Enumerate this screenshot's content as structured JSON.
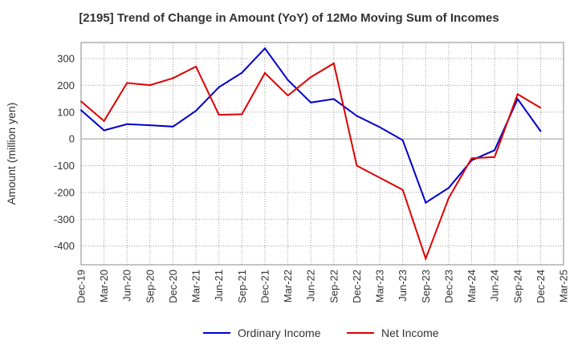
{
  "chart_data": {
    "type": "line",
    "title": "[2195]  Trend of Change in Amount (YoY) of 12Mo Moving Sum of Incomes",
    "xlabel": "",
    "ylabel": "Amount (million yen)",
    "ylim": [
      -470,
      360
    ],
    "y_ticks": [
      300,
      200,
      100,
      0,
      -100,
      -200,
      -300,
      -400
    ],
    "y_tick_labels": [
      "300",
      "200",
      "100",
      "0",
      "-100",
      "-200",
      "-300",
      "-400"
    ],
    "categories": [
      "Dec-19",
      "Mar-20",
      "Jun-20",
      "Sep-20",
      "Dec-20",
      "Mar-21",
      "Jun-21",
      "Sep-21",
      "Dec-21",
      "Mar-22",
      "Jun-22",
      "Sep-22",
      "Dec-22",
      "Mar-23",
      "Jun-23",
      "Sep-23",
      "Dec-23",
      "Mar-24",
      "Jun-24",
      "Sep-24",
      "Dec-24",
      "Mar-25"
    ],
    "grid": true,
    "legend": "bottom",
    "series": [
      {
        "name": "Ordinary Income",
        "color": "#0000cc",
        "values": [
          107,
          32,
          55,
          51,
          46,
          105,
          193,
          247,
          338,
          220,
          136,
          149,
          86,
          44,
          -5,
          -238,
          -183,
          -80,
          -42,
          149,
          29,
          null
        ]
      },
      {
        "name": "Net Income",
        "color": "#dd0000",
        "values": [
          140,
          67,
          209,
          201,
          227,
          270,
          90,
          92,
          246,
          162,
          231,
          282,
          -100,
          -145,
          -190,
          -447,
          -221,
          -72,
          -68,
          167,
          116,
          null
        ]
      }
    ]
  }
}
